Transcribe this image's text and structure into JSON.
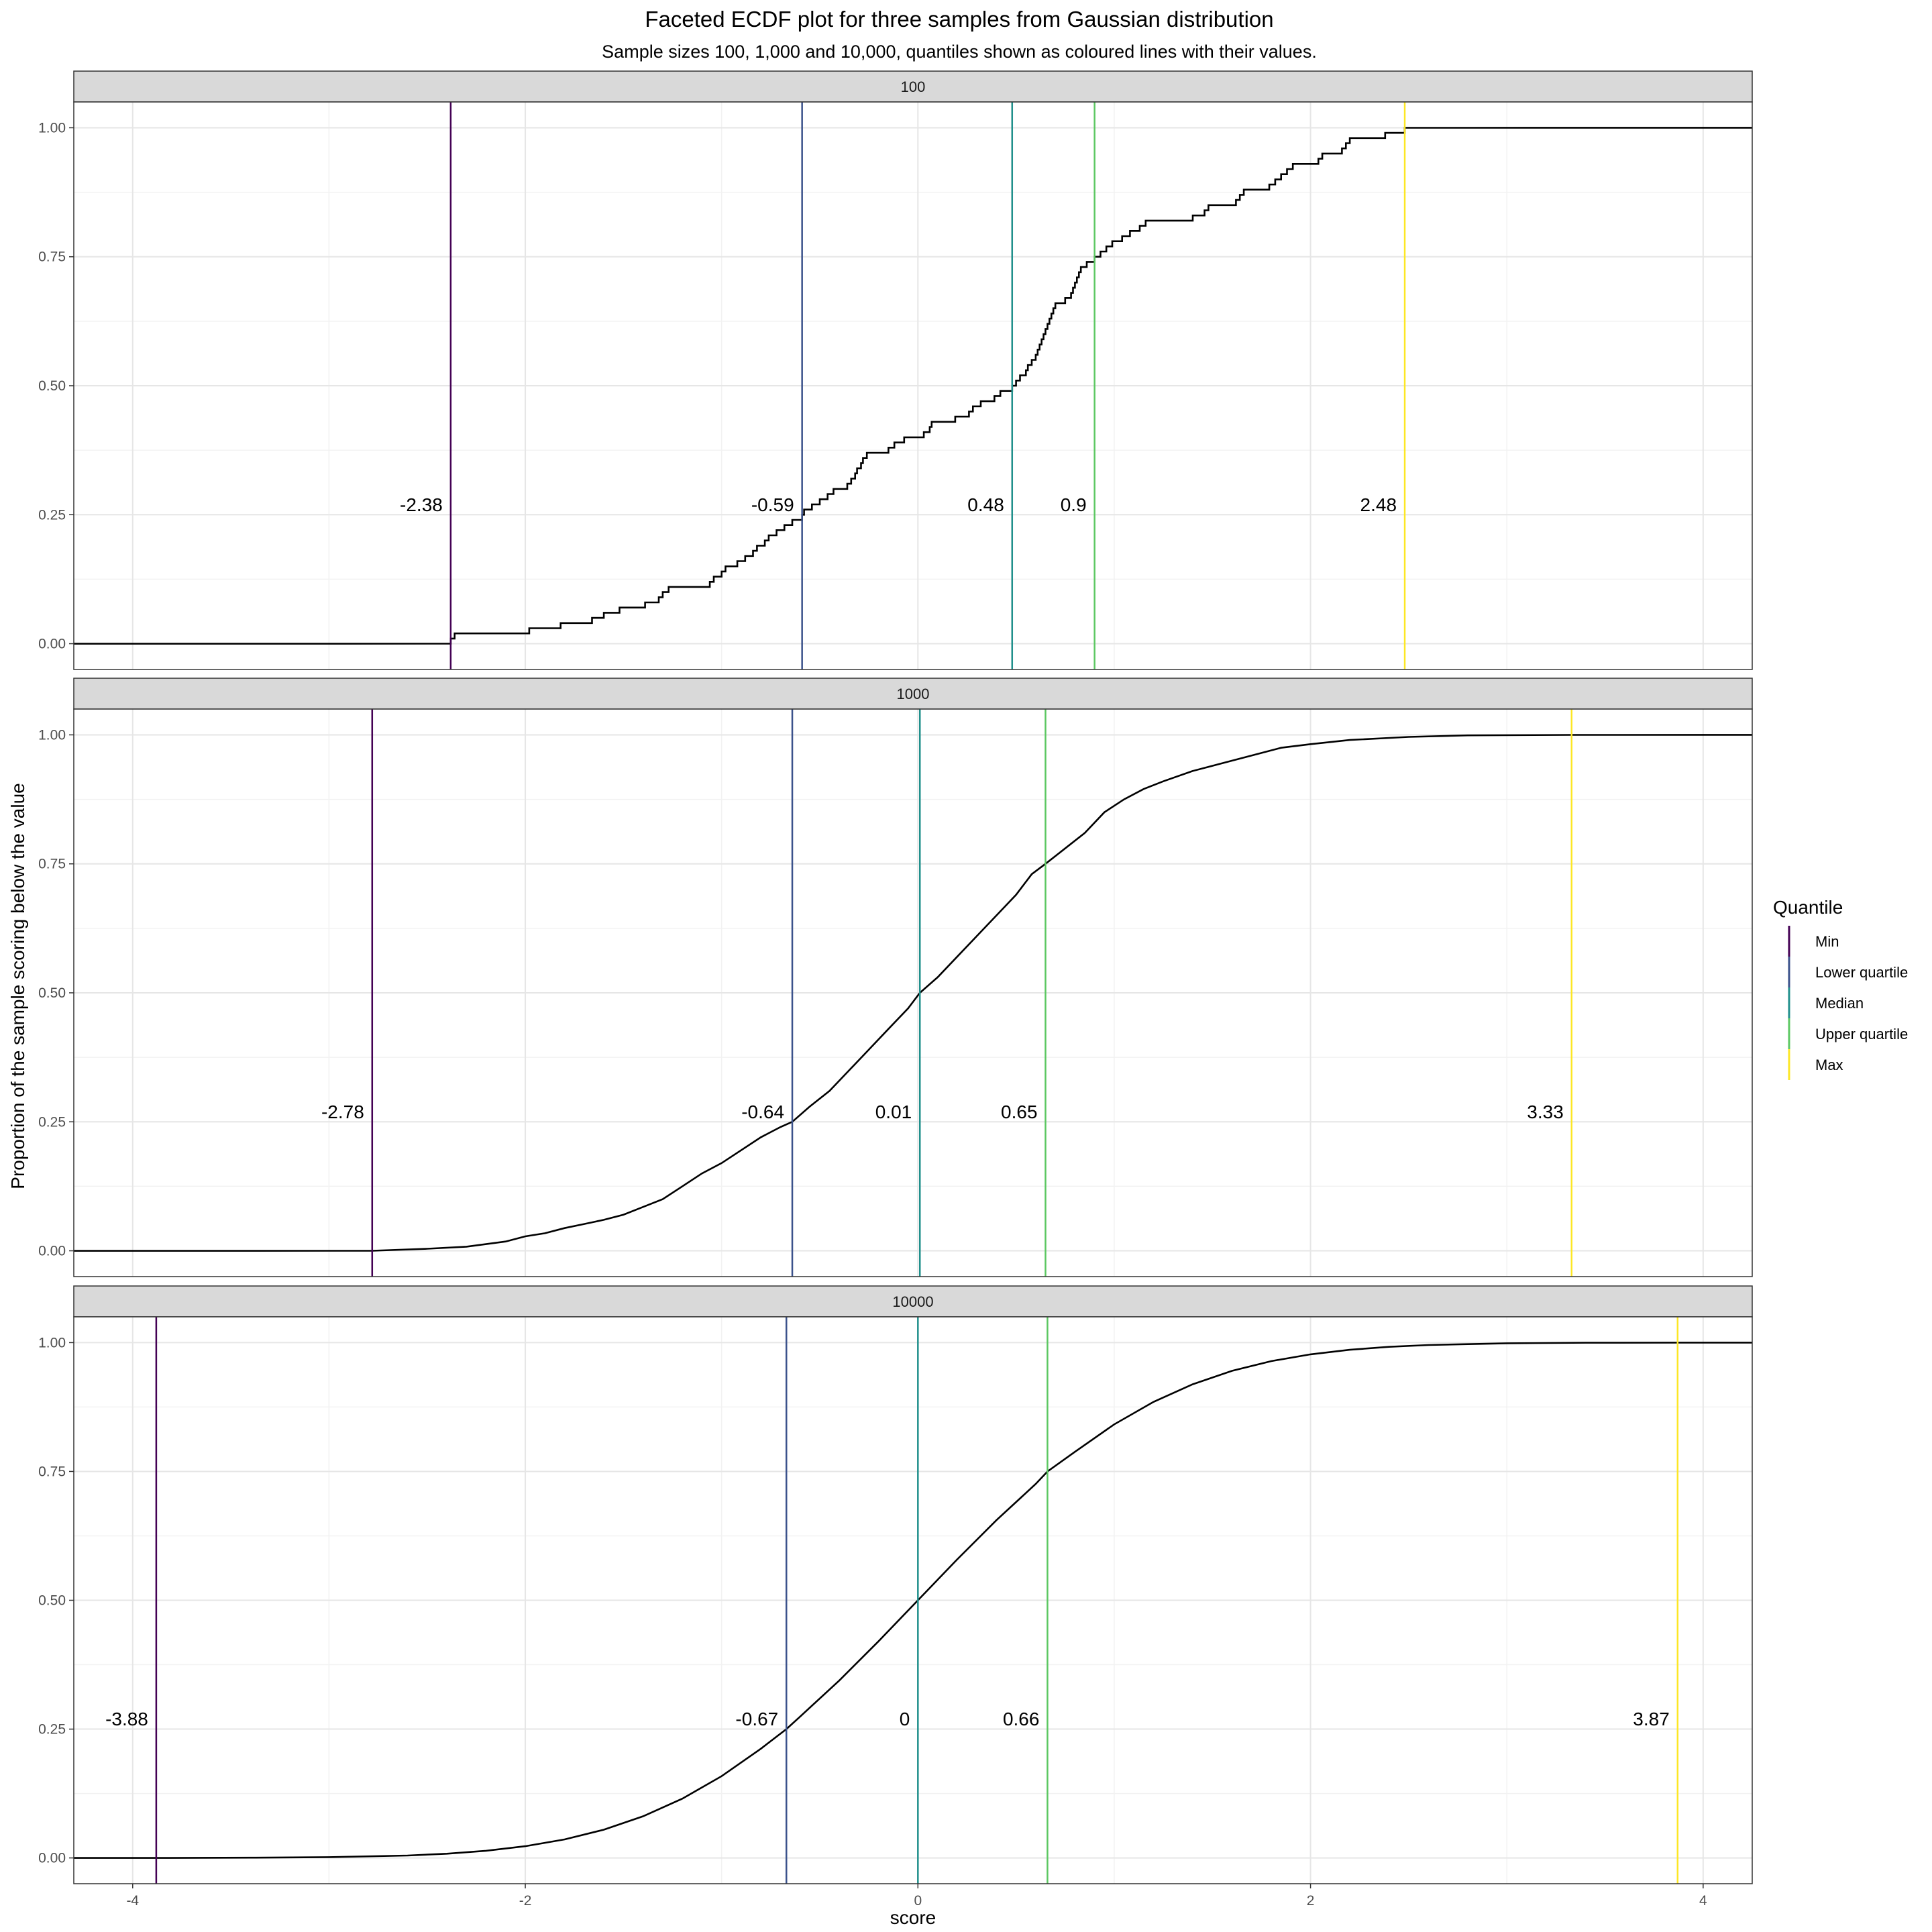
{
  "chart_data": {
    "type": "line",
    "title": "Faceted ECDF plot for three samples from Gaussian distribution",
    "subtitle": "Sample sizes 100, 1,000 and 10,000, quantiles shown as coloured lines with their values.",
    "xlabel": "score",
    "ylabel": "Proportion of the sample scoring below the value",
    "xlim": [
      -4.3,
      4.25
    ],
    "ylim": [
      -0.05,
      1.05
    ],
    "x_ticks": [
      -4,
      -2,
      0,
      2,
      4
    ],
    "x_tick_labels": [
      "-4",
      "-2",
      "0",
      "2",
      "4"
    ],
    "y_ticks": [
      0,
      0.25,
      0.5,
      0.75,
      1
    ],
    "y_tick_labels": [
      "0.00",
      "0.25",
      "0.50",
      "0.75",
      "1.00"
    ],
    "grid": true,
    "label_y": 0.27,
    "legend": {
      "title": "Quantile",
      "placement": "right",
      "entries": [
        {
          "name": "Min",
          "color": "#440154"
        },
        {
          "name": "Lower quartile",
          "color": "#3B528B"
        },
        {
          "name": "Median",
          "color": "#21908C"
        },
        {
          "name": "Upper quartile",
          "color": "#5DC863"
        },
        {
          "name": "Max",
          "color": "#FDE725"
        }
      ]
    },
    "facets": [
      {
        "strip": "100",
        "n": 100,
        "quantiles": [
          -2.38,
          -0.59,
          0.48,
          0.9,
          2.48
        ],
        "quantile_labels": [
          "-2.38",
          "-0.59",
          "0.48",
          "0.9",
          "2.48"
        ],
        "ecdf_steps": [
          [
            -2.38,
            0.01
          ],
          [
            -2.36,
            0.02
          ],
          [
            -1.98,
            0.03
          ],
          [
            -1.82,
            0.04
          ],
          [
            -1.66,
            0.05
          ],
          [
            -1.6,
            0.06
          ],
          [
            -1.52,
            0.07
          ],
          [
            -1.39,
            0.08
          ],
          [
            -1.32,
            0.09
          ],
          [
            -1.3,
            0.1
          ],
          [
            -1.27,
            0.11
          ],
          [
            -1.06,
            0.12
          ],
          [
            -1.04,
            0.13
          ],
          [
            -1.0,
            0.14
          ],
          [
            -0.98,
            0.15
          ],
          [
            -0.92,
            0.16
          ],
          [
            -0.88,
            0.17
          ],
          [
            -0.84,
            0.18
          ],
          [
            -0.82,
            0.19
          ],
          [
            -0.78,
            0.2
          ],
          [
            -0.76,
            0.21
          ],
          [
            -0.72,
            0.22
          ],
          [
            -0.68,
            0.23
          ],
          [
            -0.64,
            0.24
          ],
          [
            -0.59,
            0.25
          ],
          [
            -0.58,
            0.26
          ],
          [
            -0.54,
            0.27
          ],
          [
            -0.5,
            0.28
          ],
          [
            -0.46,
            0.29
          ],
          [
            -0.43,
            0.3
          ],
          [
            -0.36,
            0.31
          ],
          [
            -0.34,
            0.32
          ],
          [
            -0.32,
            0.33
          ],
          [
            -0.31,
            0.34
          ],
          [
            -0.29,
            0.35
          ],
          [
            -0.28,
            0.36
          ],
          [
            -0.26,
            0.37
          ],
          [
            -0.15,
            0.38
          ],
          [
            -0.12,
            0.39
          ],
          [
            -0.07,
            0.4
          ],
          [
            0.03,
            0.41
          ],
          [
            0.06,
            0.42
          ],
          [
            0.07,
            0.43
          ],
          [
            0.19,
            0.44
          ],
          [
            0.26,
            0.45
          ],
          [
            0.28,
            0.46
          ],
          [
            0.32,
            0.47
          ],
          [
            0.39,
            0.48
          ],
          [
            0.42,
            0.49
          ],
          [
            0.48,
            0.5
          ],
          [
            0.5,
            0.51
          ],
          [
            0.52,
            0.52
          ],
          [
            0.55,
            0.53
          ],
          [
            0.56,
            0.54
          ],
          [
            0.58,
            0.55
          ],
          [
            0.6,
            0.56
          ],
          [
            0.61,
            0.57
          ],
          [
            0.62,
            0.58
          ],
          [
            0.63,
            0.59
          ],
          [
            0.64,
            0.6
          ],
          [
            0.65,
            0.61
          ],
          [
            0.66,
            0.62
          ],
          [
            0.67,
            0.63
          ],
          [
            0.68,
            0.64
          ],
          [
            0.69,
            0.65
          ],
          [
            0.7,
            0.66
          ],
          [
            0.75,
            0.67
          ],
          [
            0.78,
            0.68
          ],
          [
            0.79,
            0.69
          ],
          [
            0.8,
            0.7
          ],
          [
            0.81,
            0.71
          ],
          [
            0.82,
            0.72
          ],
          [
            0.83,
            0.73
          ],
          [
            0.86,
            0.74
          ],
          [
            0.9,
            0.75
          ],
          [
            0.93,
            0.76
          ],
          [
            0.96,
            0.77
          ],
          [
            0.99,
            0.78
          ],
          [
            1.04,
            0.79
          ],
          [
            1.08,
            0.8
          ],
          [
            1.13,
            0.81
          ],
          [
            1.16,
            0.82
          ],
          [
            1.4,
            0.83
          ],
          [
            1.46,
            0.84
          ],
          [
            1.48,
            0.85
          ],
          [
            1.62,
            0.86
          ],
          [
            1.64,
            0.87
          ],
          [
            1.66,
            0.88
          ],
          [
            1.79,
            0.89
          ],
          [
            1.82,
            0.9
          ],
          [
            1.85,
            0.91
          ],
          [
            1.88,
            0.92
          ],
          [
            1.91,
            0.93
          ],
          [
            2.04,
            0.94
          ],
          [
            2.06,
            0.95
          ],
          [
            2.16,
            0.96
          ],
          [
            2.18,
            0.97
          ],
          [
            2.2,
            0.98
          ],
          [
            2.38,
            0.99
          ],
          [
            2.48,
            1.0
          ]
        ]
      },
      {
        "strip": "1000",
        "n": 1000,
        "quantiles": [
          -2.78,
          -0.64,
          0.01,
          0.65,
          3.33
        ],
        "quantile_labels": [
          "-2.78",
          "-0.64",
          "0.01",
          "0.65",
          "3.33"
        ],
        "ecdf_points": [
          [
            -2.78,
            0.0
          ],
          [
            -2.5,
            0.004
          ],
          [
            -2.3,
            0.008
          ],
          [
            -2.1,
            0.018
          ],
          [
            -2.0,
            0.028
          ],
          [
            -1.9,
            0.034
          ],
          [
            -1.8,
            0.044
          ],
          [
            -1.7,
            0.052
          ],
          [
            -1.6,
            0.06
          ],
          [
            -1.5,
            0.07
          ],
          [
            -1.4,
            0.085
          ],
          [
            -1.3,
            0.1
          ],
          [
            -1.2,
            0.125
          ],
          [
            -1.1,
            0.15
          ],
          [
            -1.0,
            0.17
          ],
          [
            -0.9,
            0.195
          ],
          [
            -0.8,
            0.22
          ],
          [
            -0.7,
            0.24
          ],
          [
            -0.64,
            0.25
          ],
          [
            -0.55,
            0.28
          ],
          [
            -0.45,
            0.31
          ],
          [
            -0.35,
            0.35
          ],
          [
            -0.25,
            0.39
          ],
          [
            -0.15,
            0.43
          ],
          [
            -0.05,
            0.47
          ],
          [
            0.01,
            0.5
          ],
          [
            0.1,
            0.53
          ],
          [
            0.2,
            0.57
          ],
          [
            0.3,
            0.61
          ],
          [
            0.4,
            0.65
          ],
          [
            0.5,
            0.69
          ],
          [
            0.58,
            0.73
          ],
          [
            0.65,
            0.75
          ],
          [
            0.75,
            0.78
          ],
          [
            0.85,
            0.81
          ],
          [
            0.95,
            0.85
          ],
          [
            1.05,
            0.875
          ],
          [
            1.15,
            0.895
          ],
          [
            1.25,
            0.91
          ],
          [
            1.4,
            0.93
          ],
          [
            1.55,
            0.945
          ],
          [
            1.7,
            0.96
          ],
          [
            1.85,
            0.975
          ],
          [
            2.0,
            0.982
          ],
          [
            2.2,
            0.99
          ],
          [
            2.5,
            0.996
          ],
          [
            2.8,
            0.999
          ],
          [
            3.33,
            1.0
          ]
        ]
      },
      {
        "strip": "10000",
        "n": 10000,
        "quantiles": [
          -3.88,
          -0.67,
          0,
          0.66,
          3.87
        ],
        "quantile_labels": [
          "-3.88",
          "-0.67",
          "0",
          "0.66",
          "3.87"
        ],
        "ecdf_points": [
          [
            -3.88,
            0.0
          ],
          [
            -3.4,
            0.0005
          ],
          [
            -3.0,
            0.0015
          ],
          [
            -2.6,
            0.0047
          ],
          [
            -2.4,
            0.0082
          ],
          [
            -2.2,
            0.0139
          ],
          [
            -2.0,
            0.0228
          ],
          [
            -1.8,
            0.0359
          ],
          [
            -1.6,
            0.0548
          ],
          [
            -1.4,
            0.0808
          ],
          [
            -1.2,
            0.1151
          ],
          [
            -1.0,
            0.1587
          ],
          [
            -0.8,
            0.2119
          ],
          [
            -0.67,
            0.25
          ],
          [
            -0.6,
            0.2743
          ],
          [
            -0.4,
            0.3446
          ],
          [
            -0.2,
            0.4207
          ],
          [
            0,
            0.5
          ],
          [
            0.2,
            0.5793
          ],
          [
            0.4,
            0.6554
          ],
          [
            0.6,
            0.7257
          ],
          [
            0.66,
            0.75
          ],
          [
            0.8,
            0.7881
          ],
          [
            1.0,
            0.8413
          ],
          [
            1.2,
            0.8849
          ],
          [
            1.4,
            0.9192
          ],
          [
            1.6,
            0.9452
          ],
          [
            1.8,
            0.9641
          ],
          [
            2.0,
            0.9772
          ],
          [
            2.2,
            0.9861
          ],
          [
            2.4,
            0.9918
          ],
          [
            2.6,
            0.9953
          ],
          [
            3.0,
            0.9987
          ],
          [
            3.4,
            0.9997
          ],
          [
            3.87,
            1.0
          ]
        ]
      }
    ]
  }
}
